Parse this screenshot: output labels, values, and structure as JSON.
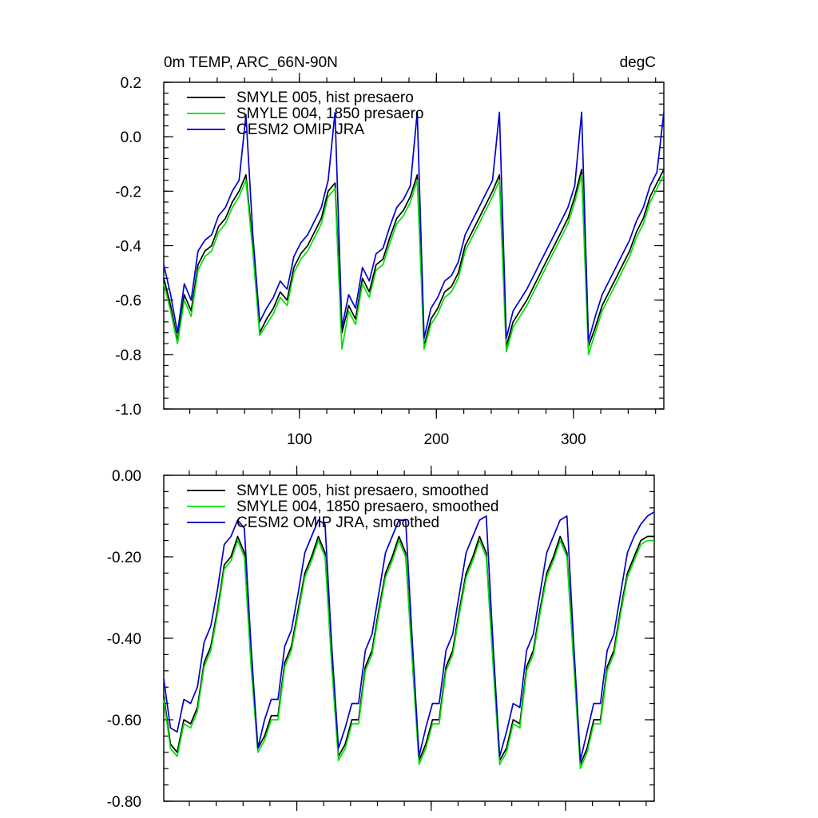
{
  "chart_data": [
    {
      "type": "line",
      "title_left": "0m TEMP, ARC_66N-90N",
      "title_right": "degC",
      "xlabel": "",
      "ylabel": "",
      "xlim": [
        1,
        366
      ],
      "ylim": [
        -1.0,
        0.2
      ],
      "x_ticks": [
        100,
        200,
        300
      ],
      "x_tick_labels": [
        "100",
        "200",
        "300"
      ],
      "y_ticks": [
        0.2,
        0.0,
        -0.2,
        -0.4,
        -0.6,
        -0.8,
        -1.0
      ],
      "y_tick_labels": [
        "0.2",
        "0.0",
        "-0.2",
        "-0.4",
        "-0.6",
        "-0.8",
        "-1.0"
      ],
      "grid": false,
      "legend_position": "top-left",
      "x": [
        1,
        6,
        11,
        16,
        21,
        26,
        31,
        36,
        41,
        46,
        51,
        56,
        61,
        66,
        71,
        76,
        81,
        86,
        91,
        96,
        101,
        106,
        111,
        116,
        121,
        126,
        131,
        136,
        141,
        146,
        151,
        156,
        161,
        166,
        171,
        176,
        181,
        186,
        191,
        196,
        201,
        206,
        211,
        216,
        221,
        226,
        231,
        236,
        241,
        246,
        251,
        256,
        261,
        266,
        271,
        276,
        281,
        286,
        291,
        296,
        301,
        306,
        311,
        316,
        321,
        326,
        331,
        336,
        341,
        346,
        351,
        356,
        361,
        366
      ],
      "series": [
        {
          "name": "SMYLE 005, hist presaero",
          "color": "#000000",
          "values": [
            -0.52,
            -0.62,
            -0.75,
            -0.58,
            -0.64,
            -0.47,
            -0.42,
            -0.4,
            -0.33,
            -0.3,
            -0.24,
            -0.2,
            -0.14,
            -0.4,
            -0.72,
            -0.67,
            -0.63,
            -0.57,
            -0.6,
            -0.48,
            -0.43,
            -0.4,
            -0.35,
            -0.3,
            -0.2,
            -0.17,
            -0.72,
            -0.62,
            -0.67,
            -0.52,
            -0.57,
            -0.47,
            -0.45,
            -0.37,
            -0.3,
            -0.27,
            -0.22,
            -0.14,
            -0.77,
            -0.67,
            -0.63,
            -0.57,
            -0.55,
            -0.5,
            -0.4,
            -0.35,
            -0.3,
            -0.25,
            -0.2,
            -0.14,
            -0.77,
            -0.68,
            -0.64,
            -0.6,
            -0.55,
            -0.5,
            -0.45,
            -0.4,
            -0.35,
            -0.3,
            -0.22,
            -0.12,
            -0.77,
            -0.7,
            -0.62,
            -0.57,
            -0.52,
            -0.47,
            -0.42,
            -0.35,
            -0.3,
            -0.22,
            -0.17,
            -0.12
          ]
        },
        {
          "name": "SMYLE 004, 1850 presaero",
          "color": "#00e000",
          "values": [
            -0.54,
            -0.64,
            -0.76,
            -0.6,
            -0.66,
            -0.49,
            -0.44,
            -0.42,
            -0.35,
            -0.32,
            -0.26,
            -0.22,
            -0.16,
            -0.42,
            -0.73,
            -0.69,
            -0.65,
            -0.59,
            -0.62,
            -0.5,
            -0.45,
            -0.42,
            -0.37,
            -0.32,
            -0.22,
            -0.19,
            -0.78,
            -0.64,
            -0.69,
            -0.54,
            -0.59,
            -0.49,
            -0.47,
            -0.39,
            -0.32,
            -0.29,
            -0.24,
            -0.16,
            -0.78,
            -0.69,
            -0.65,
            -0.59,
            -0.57,
            -0.52,
            -0.42,
            -0.37,
            -0.32,
            -0.27,
            -0.22,
            -0.16,
            -0.79,
            -0.7,
            -0.66,
            -0.62,
            -0.57,
            -0.52,
            -0.47,
            -0.42,
            -0.37,
            -0.32,
            -0.24,
            -0.14,
            -0.8,
            -0.72,
            -0.64,
            -0.59,
            -0.54,
            -0.49,
            -0.44,
            -0.37,
            -0.32,
            -0.24,
            -0.19,
            -0.14
          ]
        },
        {
          "name": "CESM2 OMIP JRA",
          "color": "#0000cc",
          "values": [
            -0.47,
            -0.58,
            -0.72,
            -0.54,
            -0.6,
            -0.42,
            -0.38,
            -0.36,
            -0.29,
            -0.26,
            -0.2,
            -0.16,
            0.08,
            -0.36,
            -0.68,
            -0.63,
            -0.59,
            -0.53,
            -0.56,
            -0.44,
            -0.39,
            -0.36,
            -0.31,
            -0.26,
            -0.16,
            0.09,
            -0.7,
            -0.58,
            -0.63,
            -0.48,
            -0.53,
            -0.43,
            -0.41,
            -0.33,
            -0.26,
            -0.23,
            -0.18,
            0.09,
            -0.74,
            -0.63,
            -0.59,
            -0.53,
            -0.51,
            -0.46,
            -0.36,
            -0.31,
            -0.26,
            -0.21,
            -0.16,
            0.09,
            -0.74,
            -0.64,
            -0.6,
            -0.56,
            -0.51,
            -0.46,
            -0.41,
            -0.36,
            -0.31,
            -0.26,
            -0.18,
            0.09,
            -0.75,
            -0.66,
            -0.58,
            -0.53,
            -0.48,
            -0.43,
            -0.38,
            -0.31,
            -0.26,
            -0.18,
            -0.13,
            0.09
          ]
        }
      ]
    },
    {
      "type": "line",
      "title_left": "",
      "title_right": "",
      "xlabel": "",
      "ylabel": "",
      "xlim": [
        1,
        366
      ],
      "ylim": [
        -0.8,
        0.0
      ],
      "x_ticks": [
        100,
        200,
        300
      ],
      "x_tick_labels": [],
      "y_ticks": [
        0.0,
        -0.2,
        -0.4,
        -0.6,
        -0.8
      ],
      "y_tick_labels": [
        "0.00",
        "-0.20",
        "-0.40",
        "-0.60",
        "-0.80"
      ],
      "grid": false,
      "legend_position": "top-left",
      "x": [
        1,
        6,
        11,
        16,
        21,
        26,
        31,
        36,
        41,
        46,
        51,
        56,
        61,
        66,
        71,
        76,
        81,
        86,
        91,
        96,
        101,
        106,
        111,
        116,
        121,
        126,
        131,
        136,
        141,
        146,
        151,
        156,
        161,
        166,
        171,
        176,
        181,
        186,
        191,
        196,
        201,
        206,
        211,
        216,
        221,
        226,
        231,
        236,
        241,
        246,
        251,
        256,
        261,
        266,
        271,
        276,
        281,
        286,
        291,
        296,
        301,
        306,
        311,
        316,
        321,
        326,
        331,
        336,
        341,
        346,
        351,
        356,
        361,
        366
      ],
      "series": [
        {
          "name": "SMYLE 005, hist presaero, smoothed",
          "color": "#000000",
          "values": [
            -0.54,
            -0.66,
            -0.68,
            -0.6,
            -0.61,
            -0.57,
            -0.46,
            -0.42,
            -0.33,
            -0.22,
            -0.2,
            -0.15,
            -0.19,
            -0.46,
            -0.67,
            -0.64,
            -0.59,
            -0.59,
            -0.46,
            -0.42,
            -0.33,
            -0.24,
            -0.2,
            -0.15,
            -0.19,
            -0.46,
            -0.69,
            -0.66,
            -0.6,
            -0.6,
            -0.47,
            -0.43,
            -0.33,
            -0.24,
            -0.2,
            -0.15,
            -0.19,
            -0.45,
            -0.7,
            -0.66,
            -0.6,
            -0.6,
            -0.47,
            -0.43,
            -0.33,
            -0.24,
            -0.2,
            -0.15,
            -0.19,
            -0.45,
            -0.7,
            -0.67,
            -0.6,
            -0.61,
            -0.47,
            -0.43,
            -0.33,
            -0.24,
            -0.2,
            -0.15,
            -0.19,
            -0.45,
            -0.71,
            -0.67,
            -0.6,
            -0.6,
            -0.47,
            -0.43,
            -0.33,
            -0.24,
            -0.2,
            -0.16,
            -0.15,
            -0.15
          ]
        },
        {
          "name": "SMYLE 004, 1850 presaero, smoothed",
          "color": "#00e000",
          "values": [
            -0.55,
            -0.67,
            -0.69,
            -0.61,
            -0.62,
            -0.58,
            -0.47,
            -0.43,
            -0.34,
            -0.23,
            -0.21,
            -0.16,
            -0.2,
            -0.47,
            -0.68,
            -0.65,
            -0.6,
            -0.6,
            -0.47,
            -0.43,
            -0.34,
            -0.25,
            -0.21,
            -0.16,
            -0.2,
            -0.47,
            -0.7,
            -0.67,
            -0.61,
            -0.61,
            -0.48,
            -0.44,
            -0.34,
            -0.25,
            -0.21,
            -0.16,
            -0.2,
            -0.46,
            -0.71,
            -0.67,
            -0.61,
            -0.61,
            -0.48,
            -0.44,
            -0.34,
            -0.25,
            -0.21,
            -0.16,
            -0.2,
            -0.46,
            -0.71,
            -0.68,
            -0.61,
            -0.62,
            -0.48,
            -0.44,
            -0.34,
            -0.25,
            -0.21,
            -0.16,
            -0.2,
            -0.46,
            -0.72,
            -0.68,
            -0.61,
            -0.61,
            -0.48,
            -0.44,
            -0.34,
            -0.25,
            -0.21,
            -0.17,
            -0.16,
            -0.16
          ]
        },
        {
          "name": "CESM2 OMIP JRA, smoothed",
          "color": "#0000cc",
          "values": [
            -0.5,
            -0.62,
            -0.63,
            -0.55,
            -0.56,
            -0.52,
            -0.41,
            -0.37,
            -0.28,
            -0.17,
            -0.15,
            -0.11,
            -0.13,
            -0.42,
            -0.67,
            -0.6,
            -0.55,
            -0.55,
            -0.42,
            -0.38,
            -0.29,
            -0.19,
            -0.15,
            -0.11,
            -0.12,
            -0.42,
            -0.67,
            -0.62,
            -0.56,
            -0.56,
            -0.43,
            -0.39,
            -0.29,
            -0.19,
            -0.15,
            -0.11,
            -0.11,
            -0.41,
            -0.69,
            -0.62,
            -0.56,
            -0.56,
            -0.43,
            -0.39,
            -0.29,
            -0.19,
            -0.15,
            -0.11,
            -0.1,
            -0.41,
            -0.69,
            -0.63,
            -0.56,
            -0.57,
            -0.43,
            -0.39,
            -0.29,
            -0.19,
            -0.15,
            -0.11,
            -0.1,
            -0.41,
            -0.7,
            -0.63,
            -0.56,
            -0.56,
            -0.43,
            -0.39,
            -0.29,
            -0.19,
            -0.15,
            -0.12,
            -0.1,
            -0.09
          ]
        }
      ]
    }
  ]
}
